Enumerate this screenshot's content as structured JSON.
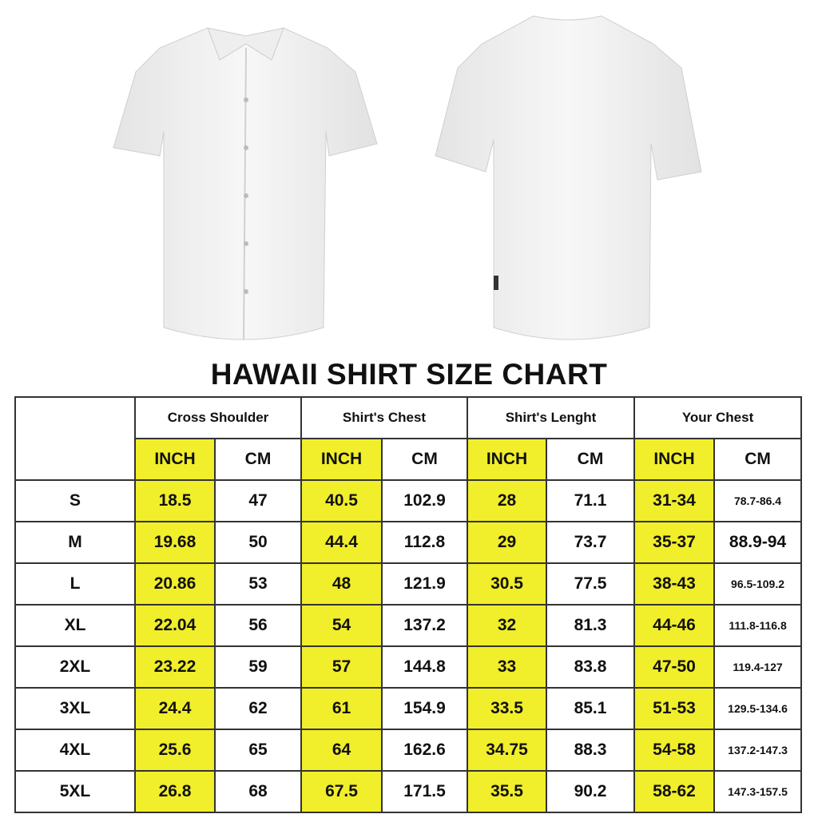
{
  "title": "HAWAII SHIRT SIZE CHART",
  "colors": {
    "highlight": "#f1ee2b",
    "border": "#333333"
  },
  "images": [
    "shirt-front",
    "shirt-back"
  ],
  "table": {
    "groups": [
      "Cross Shoulder",
      "Shirt's Chest",
      "Shirt's Lenght",
      "Your Chest"
    ],
    "units": [
      "INCH",
      "CM",
      "INCH",
      "CM",
      "INCH",
      "CM",
      "INCH",
      "CM"
    ],
    "rows": [
      [
        "S",
        "18.5",
        "47",
        "40.5",
        "102.9",
        "28",
        "71.1",
        "31-34",
        "78.7-86.4"
      ],
      [
        "M",
        "19.68",
        "50",
        "44.4",
        "112.8",
        "29",
        "73.7",
        "35-37",
        "88.9-94"
      ],
      [
        "L",
        "20.86",
        "53",
        "48",
        "121.9",
        "30.5",
        "77.5",
        "38-43",
        "96.5-109.2"
      ],
      [
        "XL",
        "22.04",
        "56",
        "54",
        "137.2",
        "32",
        "81.3",
        "44-46",
        "111.8-116.8"
      ],
      [
        "2XL",
        "23.22",
        "59",
        "57",
        "144.8",
        "33",
        "83.8",
        "47-50",
        "119.4-127"
      ],
      [
        "3XL",
        "24.4",
        "62",
        "61",
        "154.9",
        "33.5",
        "85.1",
        "51-53",
        "129.5-134.6"
      ],
      [
        "4XL",
        "25.6",
        "65",
        "64",
        "162.6",
        "34.75",
        "88.3",
        "54-58",
        "137.2-147.3"
      ],
      [
        "5XL",
        "26.8",
        "68",
        "67.5",
        "171.5",
        "35.5",
        "90.2",
        "58-62",
        "147.3-157.5"
      ]
    ]
  }
}
